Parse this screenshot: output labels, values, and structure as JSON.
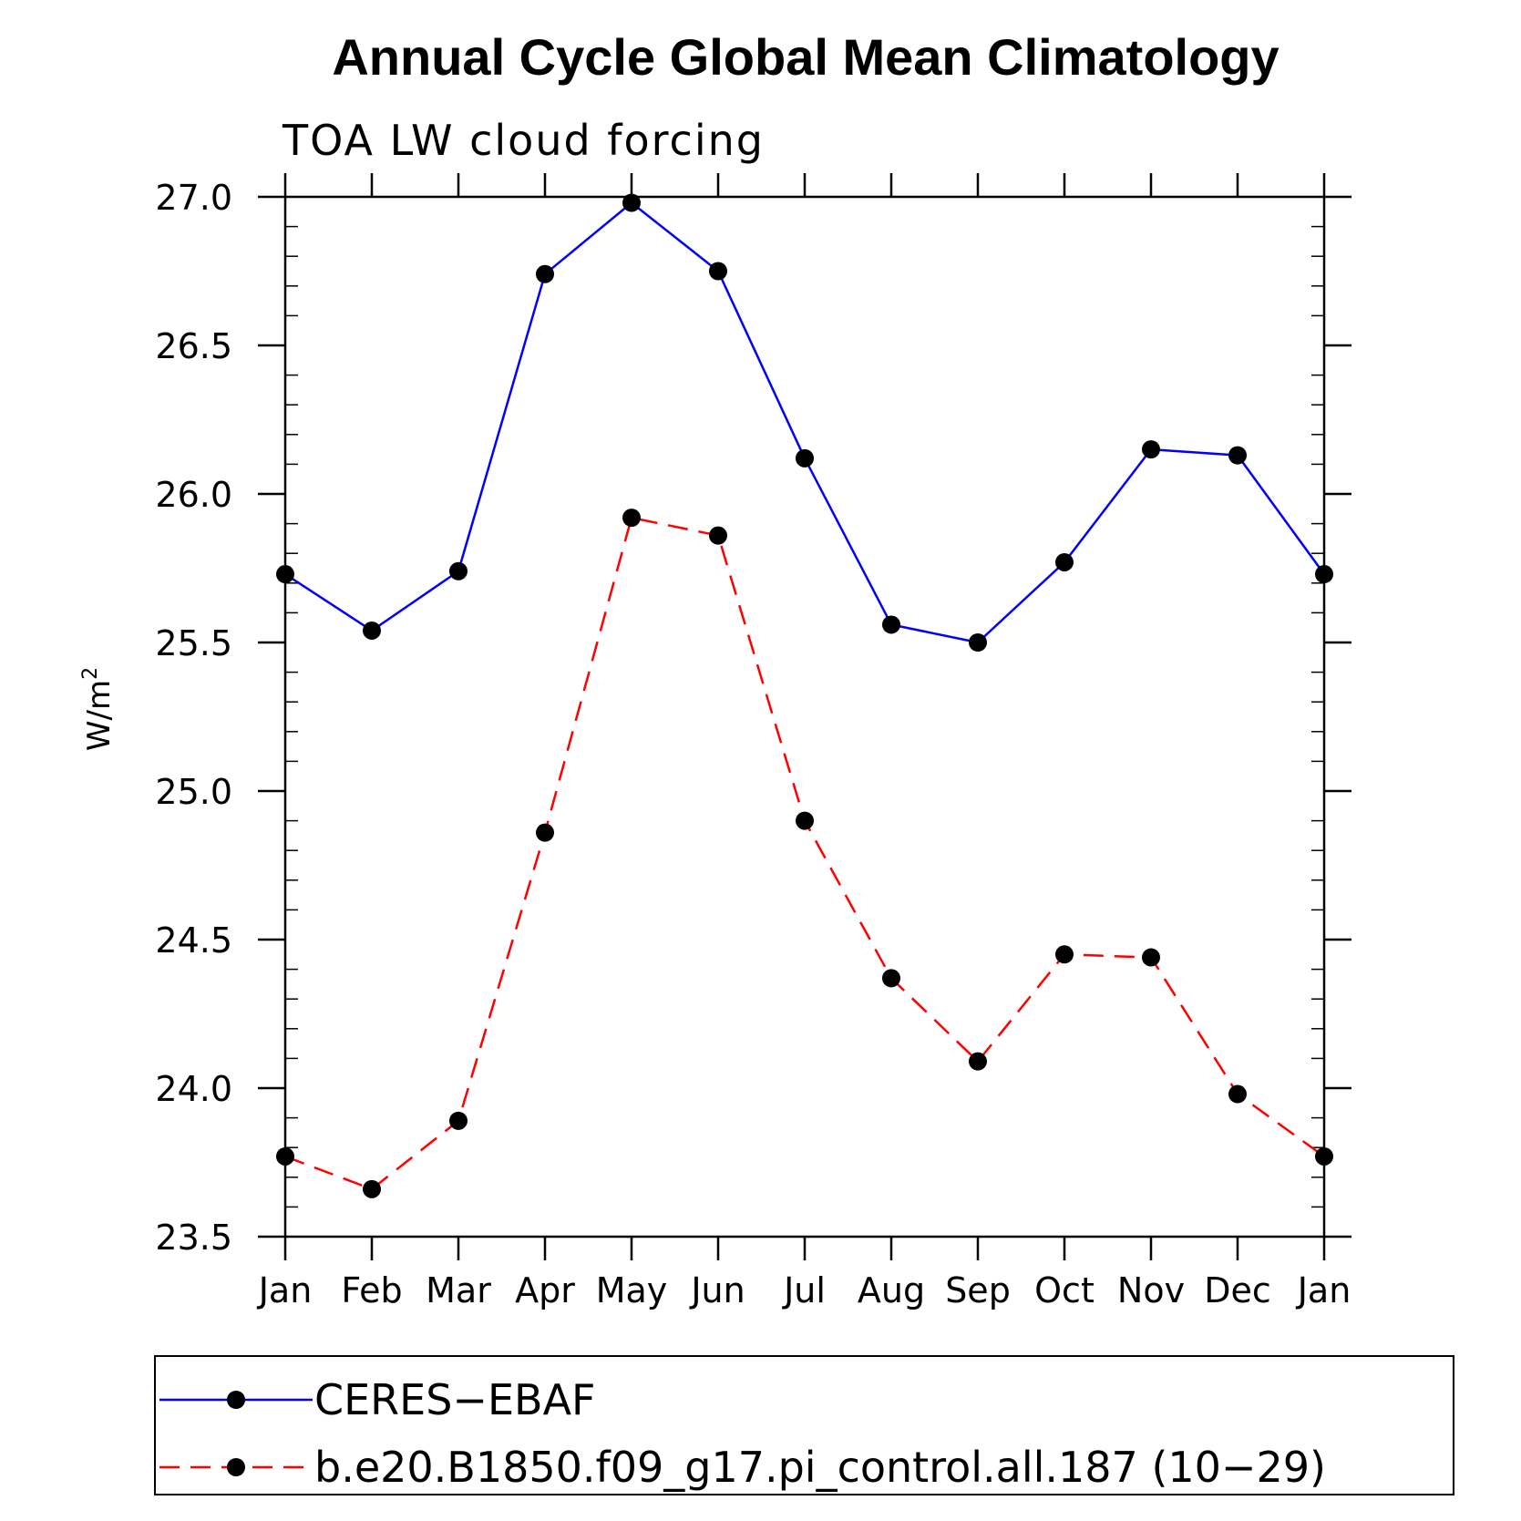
{
  "chart_data": {
    "type": "line",
    "title": "Annual Cycle Global Mean Climatology",
    "subtitle": "TOA LW cloud forcing",
    "ylabel": "W/m",
    "ylabel_sup": "2",
    "xlabel": "",
    "categories": [
      "Jan",
      "Feb",
      "Mar",
      "Apr",
      "May",
      "Jun",
      "Jul",
      "Aug",
      "Sep",
      "Oct",
      "Nov",
      "Dec",
      "Jan"
    ],
    "ylim": [
      23.5,
      27.0
    ],
    "yticks": [
      "23.5",
      "24.0",
      "24.5",
      "25.0",
      "25.5",
      "26.0",
      "26.5",
      "27.0"
    ],
    "grid": false,
    "legend_position": "bottom",
    "series": [
      {
        "name": "CERES−EBAF",
        "color": "#0000ff",
        "line_style": "solid",
        "values": [
          25.73,
          25.54,
          25.74,
          26.74,
          26.98,
          26.75,
          26.12,
          25.56,
          25.5,
          25.77,
          26.15,
          26.13,
          25.73
        ]
      },
      {
        "name": "b.e20.B1850.f09_g17.pi_control.all.187 (10−29)",
        "color": "#ff0000",
        "line_style": "dashed",
        "values": [
          23.77,
          23.66,
          23.89,
          24.86,
          25.92,
          25.86,
          24.9,
          24.37,
          24.09,
          24.45,
          24.44,
          23.98,
          23.77
        ]
      }
    ]
  }
}
